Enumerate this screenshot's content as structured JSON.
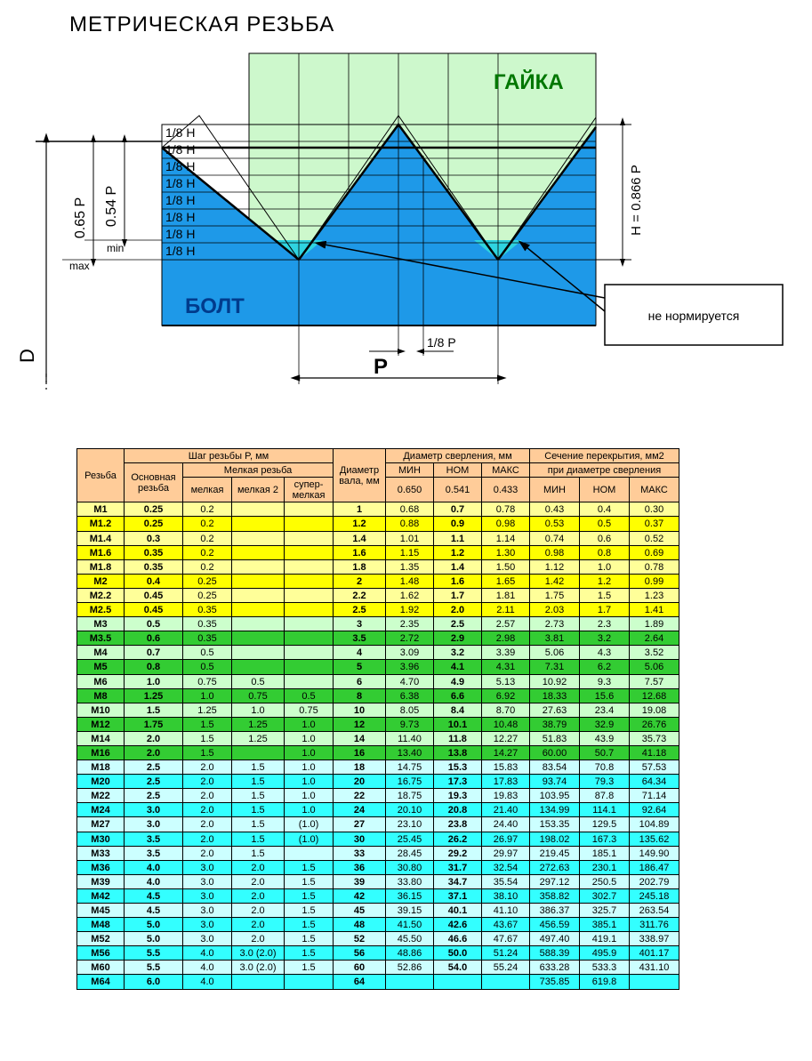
{
  "title": "МЕТРИЧЕСКАЯ РЕЗЬБА",
  "diagram": {
    "nut_label": "ГАЙКА",
    "bolt_label": "БОЛТ",
    "unnormed_label": "не нормируется",
    "H_fraction_label": "1/8 H",
    "P_symbol": "P",
    "P_fraction_label": "1/8 P",
    "H_formula": "H = 0.866 P",
    "D_label": "D",
    "p065": "0.65 P",
    "p054": "0.54 P",
    "min_label": "min",
    "max_label": "max",
    "colors": {
      "nut_fill": "#cdf8cc",
      "bolt_fill": "#1e99e8",
      "bolt_dark": "#0d8bdc",
      "root_fill": "#2fd4e0",
      "stroke": "#000000",
      "bg": "#ffffff"
    }
  },
  "table": {
    "header": {
      "col_thread": "Резьба",
      "pitch_group": "Шаг резьбы P, мм",
      "col_main": "Основная резьба",
      "fine_group": "Мелкая резьба",
      "col_fine1": "мелкая",
      "col_fine2": "мелкая 2",
      "col_fine3": "супер-мелкая",
      "col_shaft": "Диаметр вала, мм",
      "drill_group": "Диаметр сверления, мм",
      "col_min": "МИН",
      "col_nom": "НОМ",
      "col_max": "МАКС",
      "col_065": "0.650",
      "col_054": "0.541",
      "col_043": "0.433",
      "overlap_group": "Сечение перекрытия, мм2",
      "overlap_sub": "при диаметре сверления"
    },
    "colors": {
      "header_bg": "#ffcc99",
      "yellow1": "#ffff99",
      "yellow2": "#ffff00",
      "green1": "#ccffcc",
      "green2": "#33cc33",
      "cyan1": "#ccffff",
      "cyan2": "#33ffff"
    },
    "bold_cols": [
      0,
      1,
      5,
      7
    ],
    "rows": [
      {
        "c": "yellow1",
        "d": [
          "M1",
          "0.25",
          "0.2",
          "",
          "",
          "1",
          "0.68",
          "0.7",
          "0.78",
          "0.43",
          "0.4",
          "0.30"
        ]
      },
      {
        "c": "yellow2",
        "d": [
          "M1.2",
          "0.25",
          "0.2",
          "",
          "",
          "1.2",
          "0.88",
          "0.9",
          "0.98",
          "0.53",
          "0.5",
          "0.37"
        ]
      },
      {
        "c": "yellow1",
        "d": [
          "M1.4",
          "0.3",
          "0.2",
          "",
          "",
          "1.4",
          "1.01",
          "1.1",
          "1.14",
          "0.74",
          "0.6",
          "0.52"
        ]
      },
      {
        "c": "yellow2",
        "d": [
          "M1.6",
          "0.35",
          "0.2",
          "",
          "",
          "1.6",
          "1.15",
          "1.2",
          "1.30",
          "0.98",
          "0.8",
          "0.69"
        ]
      },
      {
        "c": "yellow1",
        "d": [
          "M1.8",
          "0.35",
          "0.2",
          "",
          "",
          "1.8",
          "1.35",
          "1.4",
          "1.50",
          "1.12",
          "1.0",
          "0.78"
        ]
      },
      {
        "c": "yellow2",
        "d": [
          "M2",
          "0.4",
          "0.25",
          "",
          "",
          "2",
          "1.48",
          "1.6",
          "1.65",
          "1.42",
          "1.2",
          "0.99"
        ]
      },
      {
        "c": "yellow1",
        "d": [
          "M2.2",
          "0.45",
          "0.25",
          "",
          "",
          "2.2",
          "1.62",
          "1.7",
          "1.81",
          "1.75",
          "1.5",
          "1.23"
        ]
      },
      {
        "c": "yellow2",
        "d": [
          "M2.5",
          "0.45",
          "0.35",
          "",
          "",
          "2.5",
          "1.92",
          "2.0",
          "2.11",
          "2.03",
          "1.7",
          "1.41"
        ]
      },
      {
        "c": "green1",
        "d": [
          "M3",
          "0.5",
          "0.35",
          "",
          "",
          "3",
          "2.35",
          "2.5",
          "2.57",
          "2.73",
          "2.3",
          "1.89"
        ]
      },
      {
        "c": "green2",
        "d": [
          "M3.5",
          "0.6",
          "0.35",
          "",
          "",
          "3.5",
          "2.72",
          "2.9",
          "2.98",
          "3.81",
          "3.2",
          "2.64"
        ]
      },
      {
        "c": "green1",
        "d": [
          "M4",
          "0.7",
          "0.5",
          "",
          "",
          "4",
          "3.09",
          "3.2",
          "3.39",
          "5.06",
          "4.3",
          "3.52"
        ]
      },
      {
        "c": "green2",
        "d": [
          "M5",
          "0.8",
          "0.5",
          "",
          "",
          "5",
          "3.96",
          "4.1",
          "4.31",
          "7.31",
          "6.2",
          "5.06"
        ]
      },
      {
        "c": "green1",
        "d": [
          "M6",
          "1.0",
          "0.75",
          "0.5",
          "",
          "6",
          "4.70",
          "4.9",
          "5.13",
          "10.92",
          "9.3",
          "7.57"
        ]
      },
      {
        "c": "green2",
        "d": [
          "M8",
          "1.25",
          "1.0",
          "0.75",
          "0.5",
          "8",
          "6.38",
          "6.6",
          "6.92",
          "18.33",
          "15.6",
          "12.68"
        ]
      },
      {
        "c": "green1",
        "d": [
          "M10",
          "1.5",
          "1.25",
          "1.0",
          "0.75",
          "10",
          "8.05",
          "8.4",
          "8.70",
          "27.63",
          "23.4",
          "19.08"
        ]
      },
      {
        "c": "green2",
        "d": [
          "M12",
          "1.75",
          "1.5",
          "1.25",
          "1.0",
          "12",
          "9.73",
          "10.1",
          "10.48",
          "38.79",
          "32.9",
          "26.76"
        ]
      },
      {
        "c": "green1",
        "d": [
          "M14",
          "2.0",
          "1.5",
          "1.25",
          "1.0",
          "14",
          "11.40",
          "11.8",
          "12.27",
          "51.83",
          "43.9",
          "35.73"
        ]
      },
      {
        "c": "green2",
        "d": [
          "M16",
          "2.0",
          "1.5",
          "",
          "1.0",
          "16",
          "13.40",
          "13.8",
          "14.27",
          "60.00",
          "50.7",
          "41.18"
        ]
      },
      {
        "c": "cyan1",
        "d": [
          "M18",
          "2.5",
          "2.0",
          "1.5",
          "1.0",
          "18",
          "14.75",
          "15.3",
          "15.83",
          "83.54",
          "70.8",
          "57.53"
        ]
      },
      {
        "c": "cyan2",
        "d": [
          "M20",
          "2.5",
          "2.0",
          "1.5",
          "1.0",
          "20",
          "16.75",
          "17.3",
          "17.83",
          "93.74",
          "79.3",
          "64.34"
        ]
      },
      {
        "c": "cyan1",
        "d": [
          "M22",
          "2.5",
          "2.0",
          "1.5",
          "1.0",
          "22",
          "18.75",
          "19.3",
          "19.83",
          "103.95",
          "87.8",
          "71.14"
        ]
      },
      {
        "c": "cyan2",
        "d": [
          "M24",
          "3.0",
          "2.0",
          "1.5",
          "1.0",
          "24",
          "20.10",
          "20.8",
          "21.40",
          "134.99",
          "114.1",
          "92.64"
        ]
      },
      {
        "c": "cyan1",
        "d": [
          "M27",
          "3.0",
          "2.0",
          "1.5",
          "(1.0)",
          "27",
          "23.10",
          "23.8",
          "24.40",
          "153.35",
          "129.5",
          "104.89"
        ]
      },
      {
        "c": "cyan2",
        "d": [
          "M30",
          "3.5",
          "2.0",
          "1.5",
          "(1.0)",
          "30",
          "25.45",
          "26.2",
          "26.97",
          "198.02",
          "167.3",
          "135.62"
        ]
      },
      {
        "c": "cyan1",
        "d": [
          "M33",
          "3.5",
          "2.0",
          "1.5",
          "",
          "33",
          "28.45",
          "29.2",
          "29.97",
          "219.45",
          "185.1",
          "149.90"
        ]
      },
      {
        "c": "cyan2",
        "d": [
          "M36",
          "4.0",
          "3.0",
          "2.0",
          "1.5",
          "36",
          "30.80",
          "31.7",
          "32.54",
          "272.63",
          "230.1",
          "186.47"
        ]
      },
      {
        "c": "cyan1",
        "d": [
          "M39",
          "4.0",
          "3.0",
          "2.0",
          "1.5",
          "39",
          "33.80",
          "34.7",
          "35.54",
          "297.12",
          "250.5",
          "202.79"
        ]
      },
      {
        "c": "cyan2",
        "d": [
          "M42",
          "4.5",
          "3.0",
          "2.0",
          "1.5",
          "42",
          "36.15",
          "37.1",
          "38.10",
          "358.82",
          "302.7",
          "245.18"
        ]
      },
      {
        "c": "cyan1",
        "d": [
          "M45",
          "4.5",
          "3.0",
          "2.0",
          "1.5",
          "45",
          "39.15",
          "40.1",
          "41.10",
          "386.37",
          "325.7",
          "263.54"
        ]
      },
      {
        "c": "cyan2",
        "d": [
          "M48",
          "5.0",
          "3.0",
          "2.0",
          "1.5",
          "48",
          "41.50",
          "42.6",
          "43.67",
          "456.59",
          "385.1",
          "311.76"
        ]
      },
      {
        "c": "cyan1",
        "d": [
          "M52",
          "5.0",
          "3.0",
          "2.0",
          "1.5",
          "52",
          "45.50",
          "46.6",
          "47.67",
          "497.40",
          "419.1",
          "338.97"
        ]
      },
      {
        "c": "cyan2",
        "d": [
          "M56",
          "5.5",
          "4.0",
          "3.0 (2.0)",
          "1.5",
          "56",
          "48.86",
          "50.0",
          "51.24",
          "588.39",
          "495.9",
          "401.17"
        ]
      },
      {
        "c": "cyan1",
        "d": [
          "M60",
          "5.5",
          "4.0",
          "3.0 (2.0)",
          "1.5",
          "60",
          "52.86",
          "54.0",
          "55.24",
          "633.28",
          "533.3",
          "431.10"
        ]
      },
      {
        "c": "cyan2",
        "cut": true,
        "d": [
          "M64",
          "6.0",
          "4.0",
          "",
          "",
          "64",
          "",
          "",
          "",
          "735.85",
          "619.8",
          ""
        ]
      }
    ]
  }
}
